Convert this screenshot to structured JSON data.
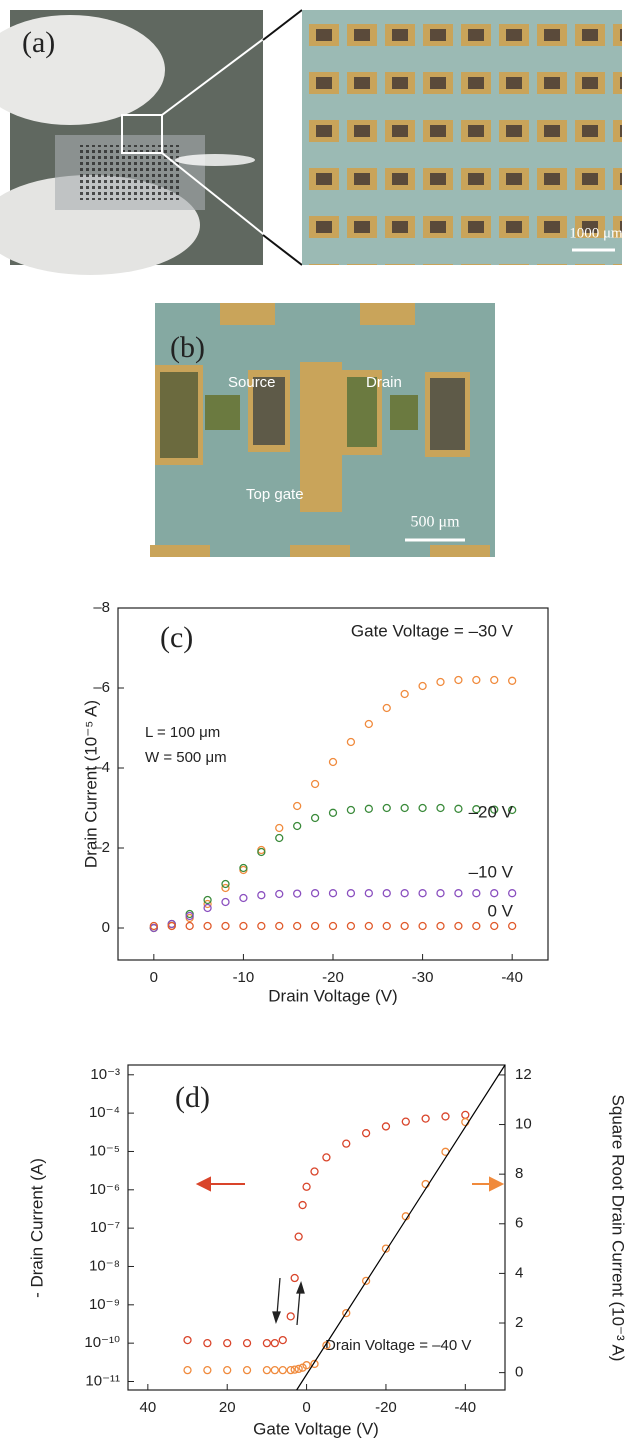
{
  "panels": {
    "a": {
      "label": "(a)",
      "scale_bar": "1000 μm"
    },
    "b": {
      "label": "(b)",
      "source": "Source",
      "drain": "Drain",
      "gate": "Top gate",
      "scale_bar": "500 μm"
    }
  },
  "chart_data": [
    {
      "type": "scatter",
      "panel_label": "(c)",
      "xlabel": "Drain Voltage (V)",
      "ylabel": "Drain Current (10⁻⁵ A)",
      "annotations": [
        "L = 100 μm",
        "W = 500 μm"
      ],
      "xlim": [
        4,
        -44
      ],
      "xticks": [
        0,
        -10,
        -20,
        -30,
        -40
      ],
      "ylim": [
        0.8,
        -8
      ],
      "yticks": [
        {
          "value": 0,
          "label": "0"
        },
        {
          "value": -2,
          "label": "–2"
        },
        {
          "value": -4,
          "label": "–4"
        },
        {
          "value": -6,
          "label": "–6"
        },
        {
          "value": -8,
          "label": "–8"
        }
      ],
      "x": [
        0,
        -2,
        -4,
        -6,
        -8,
        -10,
        -12,
        -14,
        -16,
        -18,
        -20,
        -22,
        -24,
        -26,
        -28,
        -30,
        -32,
        -34,
        -36,
        -38,
        -40
      ],
      "series": [
        {
          "name": "Gate Voltage = –30 V",
          "color": "#f08a3c",
          "values": [
            0,
            -0.05,
            -0.25,
            -0.6,
            -1.0,
            -1.45,
            -1.95,
            -2.5,
            -3.05,
            -3.6,
            -4.15,
            -4.65,
            -5.1,
            -5.5,
            -5.85,
            -6.05,
            -6.15,
            -6.2,
            -6.2,
            -6.2,
            -6.18
          ]
        },
        {
          "name": "–20 V",
          "color": "#3a8a3a",
          "values": [
            0,
            -0.1,
            -0.35,
            -0.7,
            -1.1,
            -1.5,
            -1.9,
            -2.25,
            -2.55,
            -2.75,
            -2.88,
            -2.95,
            -2.98,
            -3,
            -3,
            -3,
            -3,
            -2.98,
            -2.97,
            -2.96,
            -2.95
          ]
        },
        {
          "name": "–10 V",
          "color": "#8a4fbf",
          "values": [
            0,
            -0.1,
            -0.3,
            -0.5,
            -0.65,
            -0.75,
            -0.82,
            -0.85,
            -0.86,
            -0.87,
            -0.87,
            -0.87,
            -0.87,
            -0.87,
            -0.87,
            -0.87,
            -0.87,
            -0.87,
            -0.87,
            -0.87,
            -0.87
          ]
        },
        {
          "name": "0 V",
          "color": "#e05a2b",
          "values": [
            -0.05,
            -0.05,
            -0.05,
            -0.05,
            -0.05,
            -0.05,
            -0.05,
            -0.05,
            -0.05,
            -0.05,
            -0.05,
            -0.05,
            -0.05,
            -0.05,
            -0.05,
            -0.05,
            -0.05,
            -0.05,
            -0.05,
            -0.05,
            -0.05
          ]
        }
      ]
    },
    {
      "type": "scatter",
      "panel_label": "(d)",
      "xlabel": "Gate Voltage (V)",
      "ylabel": "- Drain Current (A)",
      "y2label": "Square Root Drain Current (10⁻³ A)",
      "annotations": [
        "Drain Voltage = –40 V"
      ],
      "log_scale_y": true,
      "xlim": [
        45,
        -50
      ],
      "xticks": [
        40,
        20,
        0,
        -20,
        -40
      ],
      "ylim": [
        6e-12,
        0.0018
      ],
      "yticks": [
        {
          "value": 1e-11,
          "label": "10⁻¹¹"
        },
        {
          "value": 1e-10,
          "label": "10⁻¹⁰"
        },
        {
          "value": 1e-09,
          "label": "10⁻⁹"
        },
        {
          "value": 1e-08,
          "label": "10⁻⁸"
        },
        {
          "value": 1e-07,
          "label": "10⁻⁷"
        },
        {
          "value": 1e-06,
          "label": "10⁻⁶"
        },
        {
          "value": 1e-05,
          "label": "10⁻⁵"
        },
        {
          "value": 0.0001,
          "label": "10⁻⁴"
        },
        {
          "value": 0.001,
          "label": "10⁻³"
        }
      ],
      "y2lim": [
        -0.7,
        12.4
      ],
      "y2ticks": [
        0,
        2,
        4,
        6,
        8,
        10,
        12
      ],
      "x": [
        30,
        25,
        20,
        15,
        10,
        8,
        6,
        4,
        3,
        2,
        1,
        0,
        -2,
        -5,
        -10,
        -15,
        -20,
        -25,
        -30,
        -35,
        -40
      ],
      "series": [
        {
          "color": "#d9442a",
          "values": [
            1.2e-10,
            1e-10,
            1e-10,
            1e-10,
            1e-10,
            1e-10,
            1.2e-10,
            5e-10,
            5e-09,
            6e-08,
            4e-07,
            1.2e-06,
            3e-06,
            7e-06,
            1.6e-05,
            3e-05,
            4.5e-05,
            6e-05,
            7.2e-05,
            8.2e-05,
            9e-05
          ]
        },
        {
          "color": "#f08a3c",
          "axis": "y2",
          "values": [
            0.1,
            0.1,
            0.1,
            0.1,
            0.1,
            0.1,
            0.1,
            0.1,
            0.12,
            0.15,
            0.2,
            0.3,
            0.35,
            1.1,
            2.4,
            3.7,
            5.0,
            6.3,
            7.6,
            8.9,
            10.1
          ]
        }
      ],
      "fit_line": {
        "color": "#000000",
        "axis": "y2",
        "x": [
          2.5,
          -50
        ],
        "values": [
          -0.7,
          12.4
        ]
      }
    }
  ]
}
